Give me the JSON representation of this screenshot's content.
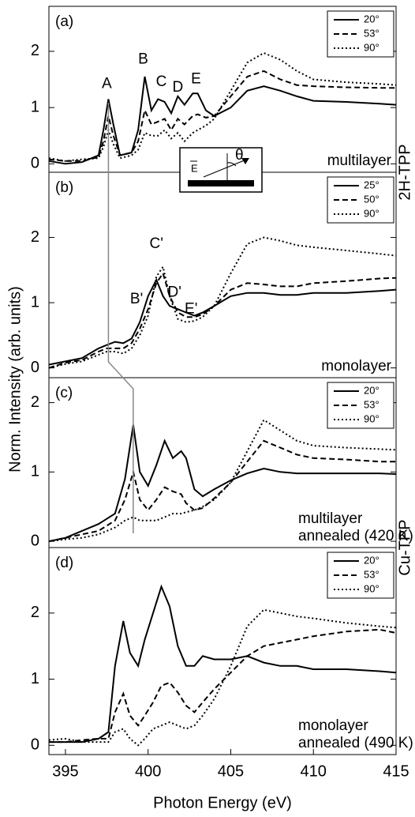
{
  "figure": {
    "ylabel": "Norm. Intensity (arb. units)",
    "xlabel": "Photon Energy (eV)",
    "groups": [
      "2H-TPP",
      "Cu-TPP"
    ],
    "inset": {
      "field": "E",
      "angle": "θ"
    }
  },
  "chart_data": [
    {
      "type": "line",
      "label": "(a)",
      "note": [
        "multilayer"
      ],
      "annotations": [
        "A",
        "B",
        "C",
        "D",
        "E"
      ],
      "x": [
        394,
        395,
        396,
        397,
        397.3,
        397.6,
        397.9,
        398.3,
        399,
        399.4,
        399.8,
        400.2,
        400.6,
        401,
        401.4,
        401.8,
        402.2,
        402.7,
        403,
        403.5,
        404,
        405,
        406,
        407,
        408,
        409,
        410,
        412,
        414,
        415
      ],
      "series": [
        {
          "name": "20°",
          "color": "#000000",
          "dash": "solid",
          "values": [
            0.05,
            0.0,
            0.03,
            0.15,
            0.6,
            1.15,
            0.7,
            0.15,
            0.2,
            0.6,
            1.55,
            0.95,
            1.15,
            1.1,
            0.9,
            1.2,
            1.05,
            1.25,
            1.25,
            0.95,
            0.85,
            1.0,
            1.3,
            1.38,
            1.3,
            1.2,
            1.12,
            1.1,
            1.07,
            1.05
          ]
        },
        {
          "name": "53°",
          "color": "#000000",
          "dash": "dashed",
          "values": [
            0.08,
            0.05,
            0.05,
            0.12,
            0.4,
            0.85,
            0.5,
            0.15,
            0.2,
            0.4,
            0.95,
            0.7,
            0.75,
            0.8,
            0.6,
            0.8,
            0.7,
            0.85,
            0.88,
            0.82,
            0.85,
            1.2,
            1.55,
            1.65,
            1.5,
            1.4,
            1.38,
            1.36,
            1.35,
            1.35
          ]
        },
        {
          "name": "90°",
          "color": "#000000",
          "dash": "dotted",
          "values": [
            0.1,
            0.05,
            0.08,
            0.1,
            0.3,
            0.6,
            0.35,
            0.1,
            0.15,
            0.25,
            0.55,
            0.5,
            0.5,
            0.6,
            0.45,
            0.55,
            0.4,
            0.55,
            0.6,
            0.68,
            0.8,
            1.3,
            1.8,
            1.97,
            1.85,
            1.65,
            1.5,
            1.45,
            1.42,
            1.4
          ]
        }
      ],
      "xlim": [
        394,
        415
      ],
      "ylim": [
        -0.15,
        2.8
      ],
      "yticks": [
        0,
        1,
        2
      ]
    },
    {
      "type": "line",
      "label": "(b)",
      "note": [
        "monolayer"
      ],
      "annotations": [
        "B'",
        "C'",
        "D'",
        "E'"
      ],
      "x": [
        394,
        395,
        396,
        397,
        397.5,
        398,
        398.5,
        399,
        399.5,
        400,
        400.5,
        400.9,
        401.3,
        401.8,
        402.3,
        402.8,
        403.3,
        404,
        405,
        406,
        407,
        408,
        409,
        410,
        412,
        414,
        415
      ],
      "series": [
        {
          "name": "25°",
          "color": "#000000",
          "dash": "solid",
          "values": [
            0.05,
            0.1,
            0.15,
            0.3,
            0.35,
            0.4,
            0.38,
            0.45,
            0.7,
            1.1,
            1.35,
            1.1,
            0.95,
            0.9,
            0.85,
            0.8,
            0.85,
            0.95,
            1.1,
            1.15,
            1.15,
            1.12,
            1.12,
            1.15,
            1.15,
            1.18,
            1.2
          ]
        },
        {
          "name": "50°",
          "color": "#000000",
          "dash": "dashed",
          "values": [
            0.0,
            0.08,
            0.12,
            0.25,
            0.3,
            0.3,
            0.3,
            0.38,
            0.6,
            0.9,
            1.3,
            1.45,
            1.1,
            0.85,
            0.78,
            0.78,
            0.82,
            0.95,
            1.2,
            1.3,
            1.28,
            1.25,
            1.25,
            1.3,
            1.33,
            1.37,
            1.38
          ]
        },
        {
          "name": "90°",
          "color": "#000000",
          "dash": "dotted",
          "values": [
            0.0,
            0.06,
            0.1,
            0.2,
            0.25,
            0.25,
            0.22,
            0.3,
            0.5,
            0.8,
            1.4,
            1.55,
            1.1,
            0.75,
            0.7,
            0.72,
            0.78,
            0.95,
            1.45,
            1.9,
            2.0,
            1.95,
            1.88,
            1.85,
            1.8,
            1.75,
            1.72
          ]
        }
      ],
      "xlim": [
        394,
        415
      ],
      "ylim": [
        -0.15,
        3.0
      ],
      "yticks": [
        0,
        1,
        2
      ]
    },
    {
      "type": "line",
      "label": "(c)",
      "note": [
        "multilayer",
        "annealed (420 K)"
      ],
      "annotations": [],
      "x": [
        394,
        395,
        396,
        397,
        398,
        398.6,
        399.1,
        399.5,
        400,
        400.5,
        401,
        401.5,
        402,
        402.3,
        402.8,
        403.3,
        404,
        405,
        406,
        407,
        408,
        409,
        410,
        412,
        414,
        415
      ],
      "series": [
        {
          "name": "20°",
          "color": "#000000",
          "dash": "solid",
          "values": [
            0.0,
            0.05,
            0.15,
            0.25,
            0.4,
            0.9,
            1.68,
            1.0,
            0.8,
            1.1,
            1.45,
            1.2,
            1.3,
            1.2,
            0.75,
            0.65,
            0.75,
            0.88,
            0.98,
            1.05,
            1.0,
            0.98,
            0.98,
            0.98,
            0.98,
            0.97
          ]
        },
        {
          "name": "53°",
          "color": "#000000",
          "dash": "dashed",
          "values": [
            0.0,
            0.05,
            0.1,
            0.15,
            0.3,
            0.6,
            1.0,
            0.6,
            0.45,
            0.6,
            0.78,
            0.72,
            0.68,
            0.55,
            0.45,
            0.48,
            0.62,
            0.85,
            1.15,
            1.45,
            1.35,
            1.25,
            1.2,
            1.18,
            1.15,
            1.15
          ]
        },
        {
          "name": "90°",
          "color": "#000000",
          "dash": "dotted",
          "values": [
            0.0,
            0.03,
            0.05,
            0.1,
            0.2,
            0.3,
            0.35,
            0.3,
            0.3,
            0.3,
            0.35,
            0.4,
            0.4,
            0.42,
            0.45,
            0.5,
            0.6,
            0.85,
            1.3,
            1.75,
            1.6,
            1.45,
            1.38,
            1.35,
            1.33,
            1.32
          ]
        }
      ],
      "xlim": [
        394,
        415
      ],
      "ylim": [
        -0.09,
        2.36
      ],
      "yticks": [
        0,
        1,
        2
      ]
    },
    {
      "type": "line",
      "label": "(d)",
      "note": [
        "monolayer",
        "annealed (490 K)"
      ],
      "annotations": [],
      "x": [
        394,
        395,
        396,
        397,
        397.6,
        398,
        398.5,
        398.9,
        399.4,
        399.8,
        400.3,
        400.8,
        401.3,
        401.8,
        402.3,
        402.8,
        403.3,
        404,
        405,
        406,
        407,
        408,
        409,
        410,
        412,
        414,
        415
      ],
      "series": [
        {
          "name": "20°",
          "color": "#000000",
          "dash": "solid",
          "values": [
            0.05,
            0.05,
            0.05,
            0.1,
            0.2,
            1.2,
            1.88,
            1.4,
            1.2,
            1.6,
            2.0,
            2.4,
            2.1,
            1.5,
            1.2,
            1.2,
            1.35,
            1.3,
            1.3,
            1.35,
            1.25,
            1.2,
            1.2,
            1.15,
            1.15,
            1.12,
            1.1
          ]
        },
        {
          "name": "53°",
          "color": "#000000",
          "dash": "dashed",
          "values": [
            0.05,
            0.05,
            0.08,
            0.1,
            0.1,
            0.5,
            0.78,
            0.45,
            0.3,
            0.45,
            0.65,
            0.9,
            0.95,
            0.8,
            0.6,
            0.5,
            0.65,
            0.85,
            1.1,
            1.35,
            1.5,
            1.55,
            1.6,
            1.65,
            1.72,
            1.75,
            1.7
          ]
        },
        {
          "name": "90°",
          "color": "#000000",
          "dash": "dotted",
          "values": [
            0.08,
            0.1,
            0.05,
            0.05,
            0.05,
            0.2,
            0.25,
            0.1,
            0.0,
            0.1,
            0.25,
            0.3,
            0.35,
            0.3,
            0.25,
            0.3,
            0.45,
            0.7,
            1.2,
            1.8,
            2.05,
            2.0,
            1.95,
            1.92,
            1.85,
            1.8,
            1.78
          ]
        }
      ],
      "xlim": [
        394,
        415
      ],
      "ylim": [
        -0.14,
        2.99
      ],
      "yticks": [
        0,
        1,
        2
      ],
      "xticks": [
        395,
        400,
        405,
        410,
        415
      ]
    }
  ]
}
